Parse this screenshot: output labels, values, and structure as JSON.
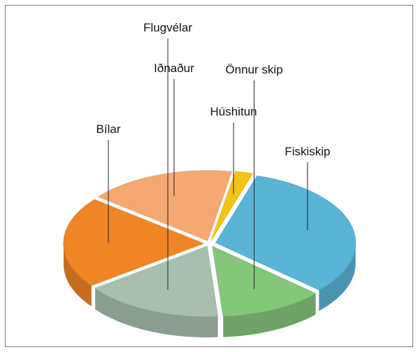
{
  "chart_data": {
    "type": "pie3d",
    "categories": [
      "Húshitun",
      "Fiskiskip",
      "Önnur skip",
      "Flugvélar",
      "Bílar",
      "Iðnaður"
    ],
    "values": [
      2,
      32,
      12,
      16,
      21,
      17
    ],
    "colors": [
      "#f5c217",
      "#5ab4d6",
      "#85c77a",
      "#a9bfad",
      "#f08526",
      "#f6a872"
    ]
  }
}
